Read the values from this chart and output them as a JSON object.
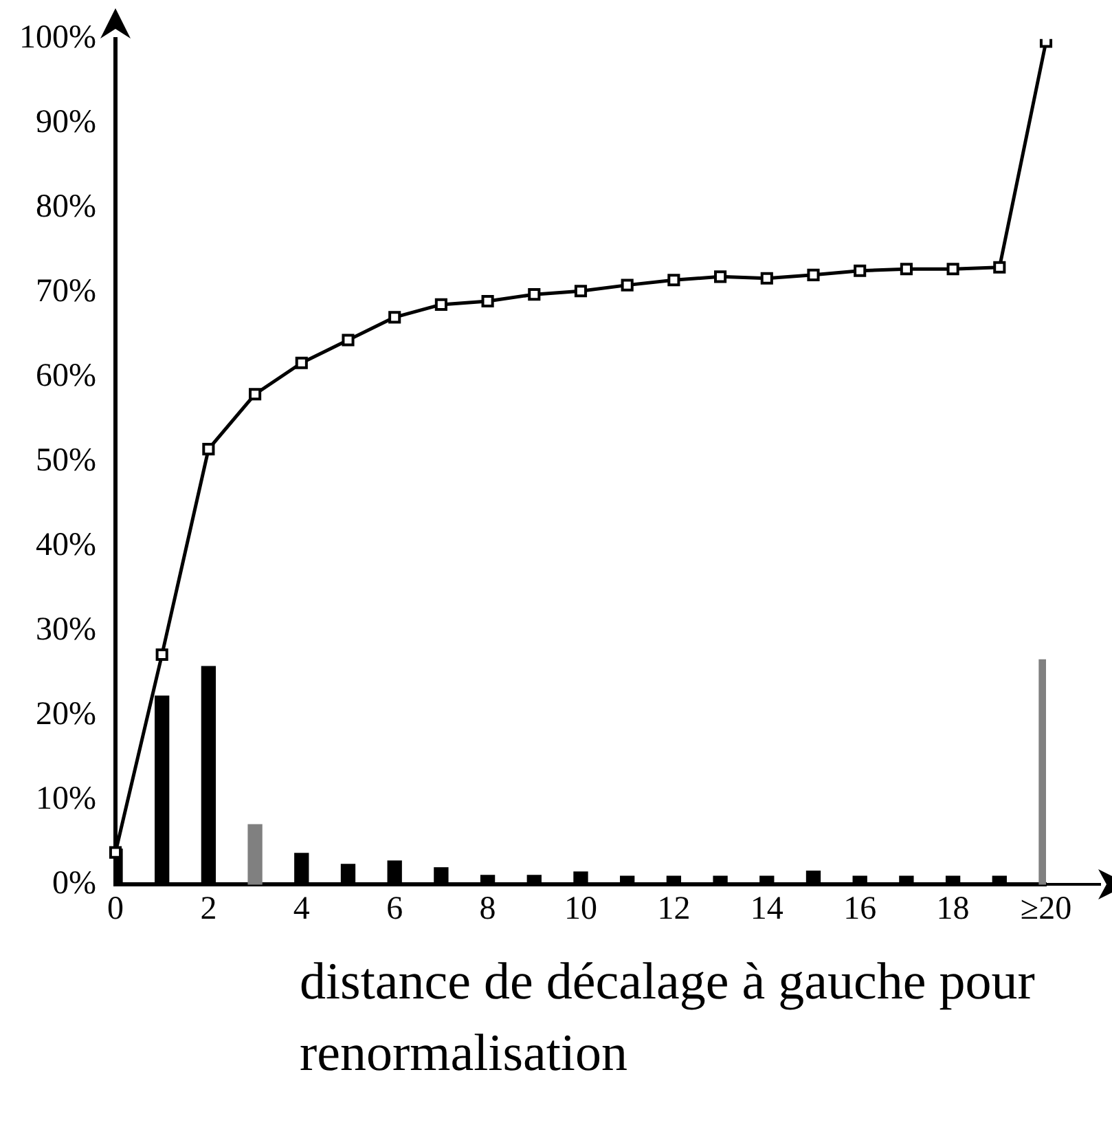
{
  "chart_data": {
    "type": "bar",
    "xlabel": "distance de décalage à gauche pour renormalisation",
    "categories": [
      "0",
      null,
      "2",
      null,
      "4",
      null,
      "6",
      null,
      "8",
      null,
      "10",
      null,
      "12",
      null,
      "14",
      null,
      "16",
      null,
      "18",
      null,
      "≥20"
    ],
    "series": [
      {
        "colors": [
          "#000000",
          "#000000",
          "#000000",
          "#808080",
          "#000000",
          "#000000",
          "#000000",
          "#000000",
          "#000000",
          "#000000",
          "#000000",
          "#000000",
          "#000000",
          "#000000",
          "#000000",
          "#000000",
          "#000000",
          "#000000",
          "#000000",
          "#000000",
          "#808080"
        ],
        "values": [
          4.2,
          22.3,
          25.8,
          7.1,
          3.7,
          2.4,
          2.8,
          2.0,
          1.1,
          1.1,
          1.5,
          1.0,
          1.0,
          1.0,
          1.0,
          1.6,
          1.0,
          1.0,
          1.0,
          1.0,
          26.6
        ]
      },
      {
        "type": "line",
        "color": "#000000",
        "values": [
          3.8,
          27.2,
          51.5,
          58,
          61.7,
          64.4,
          67.1,
          68.6,
          69,
          69.8,
          70.2,
          70.9,
          71.5,
          71.9,
          71.7,
          72.1,
          72.6,
          72.8,
          72.8,
          73,
          99.7
        ]
      }
    ],
    "marker": "square",
    "line_style": "solid",
    "legend": false,
    "ylim": [
      0,
      100
    ],
    "yticks": [
      {
        "value": 0,
        "label": "0%"
      },
      {
        "value": 10,
        "label": "10%"
      },
      {
        "value": 20,
        "label": "20%"
      },
      {
        "value": 30,
        "label": "30%"
      },
      {
        "value": 40,
        "label": "40%"
      },
      {
        "value": 50,
        "label": "50%"
      },
      {
        "value": 60,
        "label": "60%"
      },
      {
        "value": 70,
        "label": "70%"
      },
      {
        "value": 80,
        "label": "80%"
      },
      {
        "value": 90,
        "label": "90%"
      },
      {
        "value": 100,
        "label": "100%"
      }
    ]
  }
}
